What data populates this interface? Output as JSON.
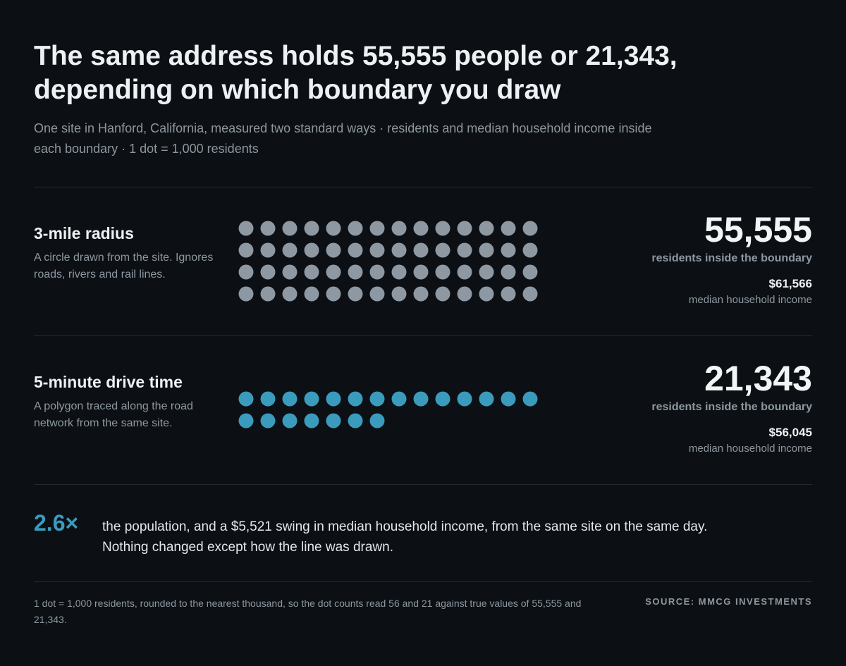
{
  "title": "The same address holds 55,555 people or 21,343, depending on which boundary you draw",
  "subtitle": "One site in Hanford, California, measured two standard ways · residents and median household income inside each boundary · 1 dot = 1,000 residents",
  "chart_data": {
    "type": "unit-dot",
    "dot_value": 1000,
    "dots_per_row": 14,
    "colors": {
      "radius": "#8e98a3",
      "drive": "#3a9bbd"
    },
    "rows": [
      {
        "key": "radius",
        "label": "3-mile radius",
        "description": "A circle drawn from the site. Ignores roads, rivers and rail lines.",
        "dots": 56,
        "residents": 55555,
        "residents_display": "55,555",
        "residents_label": "residents inside the boundary",
        "income": 61566,
        "income_display": "$61,566",
        "income_label": "median household income"
      },
      {
        "key": "drive",
        "label": "5-minute drive time",
        "description": "A polygon traced along the road network from the same site.",
        "dots": 21,
        "residents": 21343,
        "residents_display": "21,343",
        "residents_label": "residents inside the boundary",
        "income": 56045,
        "income_display": "$56,045",
        "income_label": "median household income"
      }
    ]
  },
  "takeaway": {
    "multiplier": "2.6×",
    "text": "the population, and a $5,521 swing in median household income, from the same site on the same day. Nothing changed except how the line was drawn."
  },
  "footnote": "1 dot = 1,000 residents, rounded to the nearest thousand, so the dot counts read 56 and 21 against true values of 55,555 and 21,343.",
  "source": "SOURCE: MMCG INVESTMENTS"
}
